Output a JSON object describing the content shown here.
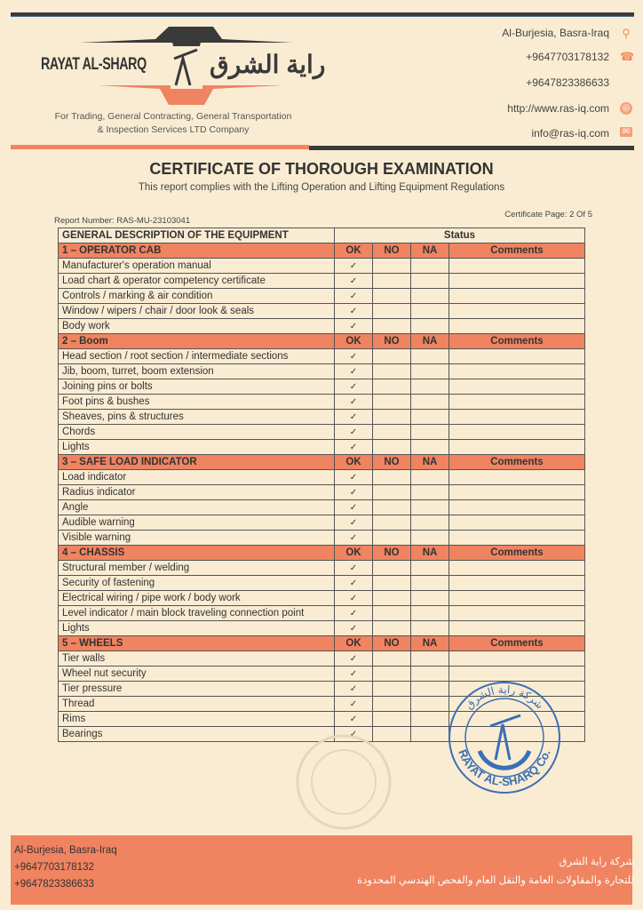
{
  "header": {
    "logo_en": "RAYAT AL-SHARQ",
    "logo_ar": "راية الشرق",
    "tagline_1": "For Trading, General Contracting, General Transportation",
    "tagline_2": "& Inspection Services LTD Company",
    "contacts": [
      {
        "text": "Al-Burjesia, Basra-Iraq",
        "icon": "location-pin-icon"
      },
      {
        "text": "+9647703178132",
        "icon": "telephone-icon"
      },
      {
        "text": "+9647823386633",
        "icon": ""
      },
      {
        "text": "http://www.ras-iq.com",
        "icon": "globe-icon"
      },
      {
        "text": "info@ras-iq.com",
        "icon": "envelope-icon"
      }
    ],
    "colors": {
      "accent": "#f08360",
      "dark": "#3a3a3a",
      "paper": "#f9ecd2"
    }
  },
  "title": "CERTIFICATE OF THOROUGH EXAMINATION",
  "subtitle": "This report complies with the Lifting Operation and Lifting Equipment Regulations",
  "report_number": "Report Number: RAS-MU-23103041",
  "certificate_page": "Certificate Page: 2 Of 5",
  "table": {
    "header_desc": "GENERAL DESCRIPTION OF THE EQUIPMENT",
    "header_status": "Status",
    "status_cols": [
      "OK",
      "NO",
      "NA",
      "Comments"
    ],
    "sections": [
      {
        "title": "1 – OPERATOR CAB",
        "items": [
          {
            "label": "Manufacturer's operation manual",
            "status": "OK"
          },
          {
            "label": "Load chart & operator competency certificate",
            "status": "OK"
          },
          {
            "label": "Controls / marking & air condition",
            "status": "OK"
          },
          {
            "label": "Window / wipers / chair / door look & seals",
            "status": "OK"
          },
          {
            "label": "Body work",
            "status": "OK"
          }
        ]
      },
      {
        "title": "2 – Boom",
        "items": [
          {
            "label": "Head section / root section / intermediate sections",
            "status": "OK"
          },
          {
            "label": "Jib, boom, turret, boom extension",
            "status": "OK"
          },
          {
            "label": "Joining pins or bolts",
            "status": "OK"
          },
          {
            "label": "Foot pins & bushes",
            "status": "OK"
          },
          {
            "label": "Sheaves, pins & structures",
            "status": "OK"
          },
          {
            "label": "Chords",
            "status": "OK"
          },
          {
            "label": "Lights",
            "status": "OK"
          }
        ]
      },
      {
        "title": "3 – SAFE LOAD INDICATOR",
        "items": [
          {
            "label": "Load indicator",
            "status": "OK"
          },
          {
            "label": "Radius indicator",
            "status": "OK"
          },
          {
            "label": "Angle",
            "status": "OK"
          },
          {
            "label": "Audible warning",
            "status": "OK"
          },
          {
            "label": "Visible warning",
            "status": "OK"
          }
        ]
      },
      {
        "title": "4 – CHASSIS",
        "items": [
          {
            "label": "Structural member / welding",
            "status": "OK"
          },
          {
            "label": "Security of fastening",
            "status": "OK"
          },
          {
            "label": "Electrical wiring / pipe work / body work",
            "status": "OK"
          },
          {
            "label": "Level indicator / main block traveling connection point",
            "status": "OK"
          },
          {
            "label": "Lights",
            "status": "OK"
          }
        ]
      },
      {
        "title": "5 – WHEELS",
        "items": [
          {
            "label": "Tier walls",
            "status": "OK"
          },
          {
            "label": "Wheel nut security",
            "status": "OK"
          },
          {
            "label": "Tier pressure",
            "status": "OK"
          },
          {
            "label": "Thread",
            "status": "OK"
          },
          {
            "label": "Rims",
            "status": "OK"
          },
          {
            "label": "Bearings",
            "status": "OK"
          }
        ]
      }
    ],
    "check_mark": "✓"
  },
  "stamp": {
    "text": "RAYAT AL-SHARQ Co.",
    "text_ar": "شركة راية الشرق",
    "color": "#3a6fb5"
  },
  "footer": {
    "address": "Al-Burjesia, Basra-Iraq",
    "phone_1": "+9647703178132",
    "phone_2": "+9647823386633",
    "ar_line_1": "شركة راية الشرق",
    "ar_line_2": "للتجارة والمقاولات العامة والنقل العام والفحص الهندسي المحدودة"
  }
}
